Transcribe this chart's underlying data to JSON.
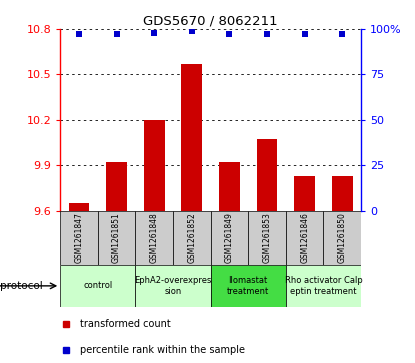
{
  "title": "GDS5670 / 8062211",
  "samples": [
    "GSM1261847",
    "GSM1261851",
    "GSM1261848",
    "GSM1261852",
    "GSM1261849",
    "GSM1261853",
    "GSM1261846",
    "GSM1261850"
  ],
  "bar_values": [
    9.65,
    9.92,
    10.2,
    10.57,
    9.92,
    10.07,
    9.83,
    9.83
  ],
  "percentile_values": [
    97,
    97,
    98,
    99,
    97,
    97,
    97,
    97
  ],
  "ylim_left": [
    9.6,
    10.8
  ],
  "yticks_left": [
    9.6,
    9.9,
    10.2,
    10.5,
    10.8
  ],
  "yticks_right": [
    0,
    25,
    50,
    75,
    100
  ],
  "bar_color": "#cc0000",
  "dot_color": "#0000cc",
  "protocols": [
    {
      "label": "control",
      "samples": [
        0,
        1
      ],
      "color": "#ccffcc"
    },
    {
      "label": "EphA2-overexpres\nsion",
      "samples": [
        2,
        3
      ],
      "color": "#ccffcc"
    },
    {
      "label": "Ilomastat\ntreatment",
      "samples": [
        4,
        5
      ],
      "color": "#44dd44"
    },
    {
      "label": "Rho activator Calp\neptin treatment",
      "samples": [
        6,
        7
      ],
      "color": "#ccffcc"
    }
  ],
  "sample_box_color": "#cccccc",
  "protocol_label": "protocol",
  "legend_bar_label": "transformed count",
  "legend_dot_label": "percentile rank within the sample",
  "bg_color": "#ffffff"
}
